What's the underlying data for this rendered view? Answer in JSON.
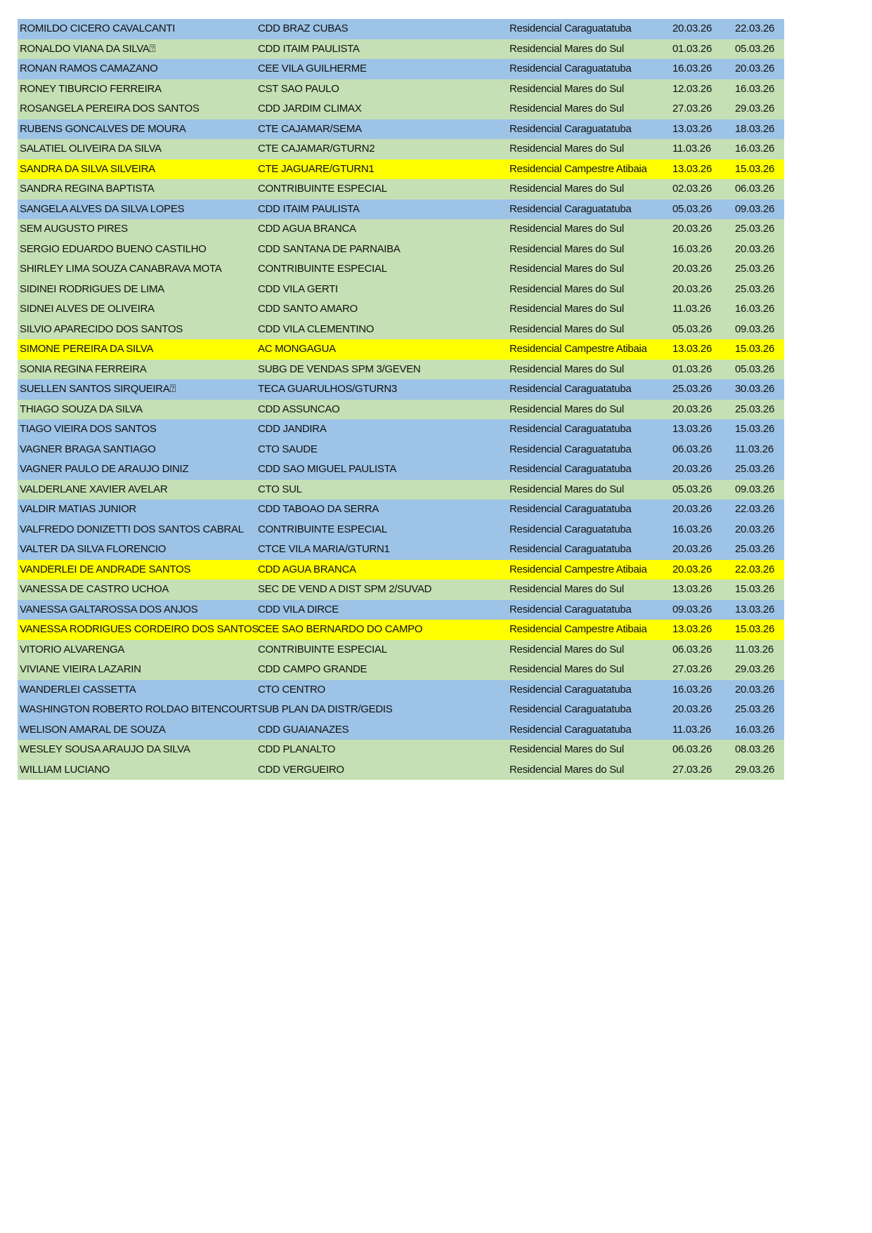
{
  "colors": {
    "Residencial Caraguatatuba": "#9DC3E6",
    "Residencial Mares do Sul": "#C5E0B4",
    "Residencial Campestre Atibaia": "#FFFF00"
  },
  "rows": [
    [
      "ROMILDO CICERO CAVALCANTI",
      "CDD BRAZ CUBAS",
      "Residencial Caraguatatuba",
      "20.03.26",
      "22.03.26"
    ],
    [
      "RONALDO VIANA DA SILVA⍰",
      "CDD ITAIM PAULISTA",
      "Residencial Mares do Sul",
      "01.03.26",
      "05.03.26"
    ],
    [
      "RONAN RAMOS CAMAZANO",
      "CEE VILA GUILHERME",
      "Residencial Caraguatatuba",
      "16.03.26",
      "20.03.26"
    ],
    [
      "RONEY TIBURCIO FERREIRA",
      "CST SAO PAULO",
      "Residencial Mares do Sul",
      "12.03.26",
      "16.03.26"
    ],
    [
      "ROSANGELA PEREIRA DOS SANTOS",
      "CDD JARDIM CLIMAX",
      "Residencial Mares do Sul",
      "27.03.26",
      "29.03.26"
    ],
    [
      "RUBENS GONCALVES DE MOURA",
      "CTE CAJAMAR/SEMA",
      "Residencial Caraguatatuba",
      "13.03.26",
      "18.03.26"
    ],
    [
      "SALATIEL OLIVEIRA DA SILVA",
      "CTE CAJAMAR/GTURN2",
      "Residencial Mares do Sul",
      "11.03.26",
      "16.03.26"
    ],
    [
      "SANDRA DA SILVA SILVEIRA",
      "CTE JAGUARE/GTURN1",
      "Residencial Campestre Atibaia",
      "13.03.26",
      "15.03.26"
    ],
    [
      "SANDRA REGINA BAPTISTA",
      "CONTRIBUINTE ESPECIAL",
      "Residencial Mares do Sul",
      "02.03.26",
      "06.03.26"
    ],
    [
      "SANGELA ALVES DA SILVA LOPES",
      "CDD ITAIM PAULISTA",
      "Residencial Caraguatatuba",
      "05.03.26",
      "09.03.26"
    ],
    [
      "SEM AUGUSTO PIRES",
      "CDD AGUA BRANCA",
      "Residencial Mares do Sul",
      "20.03.26",
      "25.03.26"
    ],
    [
      "SERGIO EDUARDO BUENO CASTILHO",
      "CDD SANTANA DE PARNAIBA",
      "Residencial Mares do Sul",
      "16.03.26",
      "20.03.26"
    ],
    [
      "SHIRLEY LIMA SOUZA CANABRAVA MOTA",
      "CONTRIBUINTE ESPECIAL",
      "Residencial Mares do Sul",
      "20.03.26",
      "25.03.26"
    ],
    [
      "SIDINEI RODRIGUES DE LIMA",
      "CDD VILA GERTI",
      "Residencial Mares do Sul",
      "20.03.26",
      "25.03.26"
    ],
    [
      "SIDNEI ALVES DE OLIVEIRA",
      "CDD SANTO AMARO",
      "Residencial Mares do Sul",
      "11.03.26",
      "16.03.26"
    ],
    [
      "SILVIO APARECIDO DOS SANTOS",
      "CDD VILA CLEMENTINO",
      "Residencial Mares do Sul",
      "05.03.26",
      "09.03.26"
    ],
    [
      "SIMONE PEREIRA DA SILVA",
      "AC MONGAGUA",
      "Residencial Campestre Atibaia",
      "13.03.26",
      "15.03.26"
    ],
    [
      "SONIA REGINA FERREIRA",
      "SUBG DE VENDAS SPM 3/GEVEN",
      "Residencial Mares do Sul",
      "01.03.26",
      "05.03.26"
    ],
    [
      "SUELLEN SANTOS SIRQUEIRA⍰",
      "TECA GUARULHOS/GTURN3",
      "Residencial Caraguatatuba",
      "25.03.26",
      "30.03.26"
    ],
    [
      "THIAGO SOUZA DA SILVA",
      "CDD ASSUNCAO",
      "Residencial Mares do Sul",
      "20.03.26",
      "25.03.26"
    ],
    [
      "TIAGO VIEIRA DOS SANTOS",
      "CDD JANDIRA",
      "Residencial Caraguatatuba",
      "13.03.26",
      "15.03.26"
    ],
    [
      "VAGNER BRAGA SANTIAGO",
      "CTO SAUDE",
      "Residencial Caraguatatuba",
      "06.03.26",
      "11.03.26"
    ],
    [
      "VAGNER PAULO DE ARAUJO DINIZ",
      "CDD SAO MIGUEL PAULISTA",
      "Residencial Caraguatatuba",
      "20.03.26",
      "25.03.26"
    ],
    [
      "VALDERLANE XAVIER AVELAR",
      "CTO SUL",
      "Residencial Mares do Sul",
      "05.03.26",
      "09.03.26"
    ],
    [
      "VALDIR MATIAS JUNIOR",
      "CDD TABOAO DA SERRA",
      "Residencial Caraguatatuba",
      "20.03.26",
      "22.03.26"
    ],
    [
      "VALFREDO DONIZETTI DOS SANTOS CABRAL",
      "CONTRIBUINTE ESPECIAL",
      "Residencial Caraguatatuba",
      "16.03.26",
      "20.03.26"
    ],
    [
      "VALTER DA SILVA FLORENCIO",
      "CTCE VILA MARIA/GTURN1",
      "Residencial Caraguatatuba",
      "20.03.26",
      "25.03.26"
    ],
    [
      "VANDERLEI DE ANDRADE SANTOS",
      "CDD AGUA BRANCA",
      "Residencial Campestre Atibaia",
      "20.03.26",
      "22.03.26"
    ],
    [
      "VANESSA DE CASTRO UCHOA",
      "SEC DE VEND A DIST SPM 2/SUVAD",
      "Residencial Mares do Sul",
      "13.03.26",
      "15.03.26"
    ],
    [
      "VANESSA GALTAROSSA DOS ANJOS",
      "CDD VILA DIRCE",
      "Residencial Caraguatatuba",
      "09.03.26",
      "13.03.26"
    ],
    [
      "VANESSA RODRIGUES CORDEIRO DOS SANTOS",
      "CEE SAO BERNARDO DO CAMPO",
      "Residencial Campestre Atibaia",
      "13.03.26",
      "15.03.26"
    ],
    [
      "VITORIO ALVARENGA",
      "CONTRIBUINTE ESPECIAL",
      "Residencial Mares do Sul",
      "06.03.26",
      "11.03.26"
    ],
    [
      "VIVIANE VIEIRA LAZARIN",
      "CDD CAMPO GRANDE",
      "Residencial Mares do Sul",
      "27.03.26",
      "29.03.26"
    ],
    [
      "WANDERLEI CASSETTA",
      "CTO CENTRO",
      "Residencial Caraguatatuba",
      "16.03.26",
      "20.03.26"
    ],
    [
      "WASHINGTON ROBERTO ROLDAO BITENCOURT",
      "SUB PLAN DA DISTR/GEDIS",
      "Residencial Caraguatatuba",
      "20.03.26",
      "25.03.26"
    ],
    [
      "WELISON AMARAL DE SOUZA",
      "CDD GUAIANAZES",
      "Residencial Caraguatatuba",
      "11.03.26",
      "16.03.26"
    ],
    [
      "WESLEY SOUSA ARAUJO DA SILVA",
      "CDD PLANALTO",
      "Residencial Mares do Sul",
      "06.03.26",
      "08.03.26"
    ],
    [
      "WILLIAM LUCIANO",
      "CDD VERGUEIRO",
      "Residencial Mares do Sul",
      "27.03.26",
      "29.03.26"
    ]
  ]
}
